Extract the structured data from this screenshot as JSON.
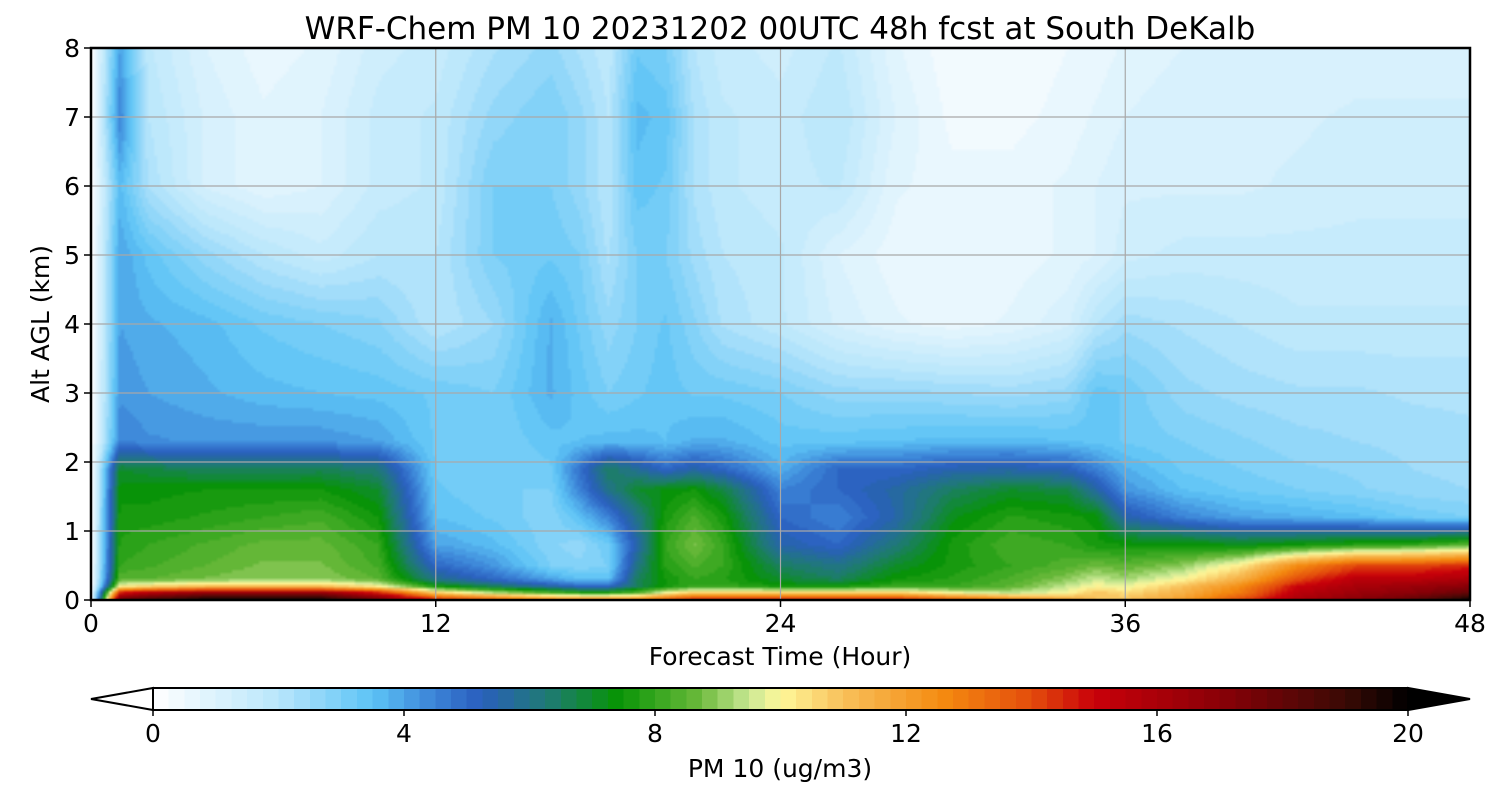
{
  "chart_data": {
    "type": "heatmap",
    "title": "WRF-Chem PM 10  20231202 00UTC 48h fcst at South DeKalb",
    "xlabel": "Forecast Time (Hour)",
    "ylabel": "Alt AGL (km)",
    "xlim": [
      0,
      48
    ],
    "ylim": [
      0,
      8
    ],
    "x_ticks": [
      0,
      12,
      24,
      36,
      48
    ],
    "y_ticks": [
      0,
      1,
      2,
      3,
      4,
      5,
      6,
      7,
      8
    ],
    "grid": true,
    "colorbar": {
      "label": "PM 10  (ug/m3)",
      "range": [
        0,
        20
      ],
      "ticks": [
        0,
        4,
        8,
        12,
        16,
        20
      ],
      "extend": "both",
      "orientation": "horizontal",
      "color_stops": [
        {
          "v": 0,
          "c": "#ffffff"
        },
        {
          "v": 2,
          "c": "#b9e6fb"
        },
        {
          "v": 3.5,
          "c": "#5cc3f6"
        },
        {
          "v": 4.5,
          "c": "#3b82d6"
        },
        {
          "v": 5.2,
          "c": "#2a5fbe"
        },
        {
          "v": 6.3,
          "c": "#1f7a73"
        },
        {
          "v": 7.4,
          "c": "#079406"
        },
        {
          "v": 8.7,
          "c": "#6ab93a"
        },
        {
          "v": 9.5,
          "c": "#c9e894"
        },
        {
          "v": 10,
          "c": "#fff89a"
        },
        {
          "v": 11,
          "c": "#f8c05a"
        },
        {
          "v": 12.6,
          "c": "#f48a10"
        },
        {
          "v": 14,
          "c": "#e34c0c"
        },
        {
          "v": 15,
          "c": "#c9000a"
        },
        {
          "v": 17,
          "c": "#8a0007"
        },
        {
          "v": 19,
          "c": "#3a0a05"
        },
        {
          "v": 20,
          "c": "#000000"
        }
      ]
    },
    "field": {
      "x": [
        0,
        1,
        2,
        4,
        6,
        8,
        10,
        12,
        14,
        16,
        17,
        18,
        19,
        20,
        21,
        22,
        24,
        26,
        28,
        30,
        32,
        34,
        35,
        36,
        38,
        40,
        42,
        44,
        46,
        48
      ],
      "y": [
        0,
        0.1,
        0.2,
        0.3,
        0.5,
        0.8,
        1.2,
        1.6,
        1.9,
        2.3,
        3,
        4,
        5,
        6,
        7,
        8
      ],
      "values": [
        [
          0,
          18,
          19,
          20,
          20,
          20,
          18,
          15,
          14,
          13,
          13,
          13,
          13,
          14,
          15,
          15,
          15,
          15,
          15,
          14,
          13,
          12,
          11,
          11,
          12,
          14,
          16,
          17,
          18,
          20
        ],
        [
          0,
          15,
          16,
          17,
          17,
          17,
          15,
          11,
          9.5,
          8.5,
          8,
          8,
          8.5,
          10,
          11,
          11,
          11,
          11,
          11,
          10,
          9.5,
          10,
          11,
          10.5,
          11.5,
          13,
          15.5,
          16.5,
          17,
          18
        ],
        [
          0,
          10,
          10.5,
          11,
          11,
          11,
          10,
          7.5,
          6.5,
          5.5,
          5,
          5,
          6.5,
          7.5,
          8,
          8,
          7.5,
          7.5,
          8,
          8,
          8.5,
          9.5,
          10,
          9.8,
          11,
          12.5,
          15,
          16,
          16.5,
          17
        ],
        [
          0,
          8.5,
          8.5,
          8.8,
          9,
          9,
          8.5,
          6,
          5,
          4,
          3.5,
          3.5,
          6.5,
          7.5,
          8,
          7.8,
          7,
          6.5,
          7.5,
          7.8,
          8.3,
          9,
          9.5,
          9.2,
          10,
          11.5,
          14,
          15.5,
          15.5,
          16
        ],
        [
          0,
          8,
          8.2,
          8.5,
          8.8,
          8.8,
          8.2,
          5,
          4.2,
          3,
          2.8,
          3,
          6,
          7.8,
          8.3,
          8,
          6.5,
          6,
          7,
          7.6,
          8,
          8.4,
          8.7,
          8.5,
          9,
          10.2,
          12.5,
          14,
          14,
          14.5
        ],
        [
          0,
          7.8,
          8,
          8.3,
          8.6,
          8.6,
          8,
          4,
          3.6,
          2.8,
          2.6,
          3.2,
          5.5,
          8,
          8.8,
          8,
          5.5,
          5,
          6.2,
          7.6,
          8.2,
          8,
          7.6,
          7.5,
          7.5,
          7.2,
          7.5,
          7.8,
          8,
          8.5
        ],
        [
          0,
          7.6,
          7.6,
          7.8,
          8,
          8.2,
          7.5,
          3.5,
          3.2,
          2.8,
          3.5,
          4.5,
          6,
          7.6,
          8.3,
          7.6,
          5,
          4.5,
          5.5,
          7.2,
          7.8,
          7.6,
          7.4,
          5.5,
          4.5,
          4,
          3.8,
          3.6,
          3.2,
          3
        ],
        [
          0,
          7.4,
          7.4,
          7.5,
          7.5,
          7.5,
          7,
          3.3,
          3,
          3,
          4.5,
          6,
          7,
          7.3,
          7.5,
          6.8,
          4.5,
          5,
          5.6,
          6.5,
          7,
          6.8,
          5.6,
          4.2,
          3.5,
          3.2,
          3,
          2.8,
          2.6,
          2.5
        ],
        [
          0,
          7,
          6.8,
          6.5,
          6.5,
          6.6,
          6.2,
          3.2,
          3,
          3.2,
          4.8,
          6.5,
          5.8,
          5,
          5.5,
          5,
          3.8,
          5,
          5,
          5.4,
          5.5,
          5.2,
          4.5,
          3.8,
          3.2,
          3,
          2.8,
          2.7,
          2.5,
          2.4
        ],
        [
          0,
          4.5,
          4.3,
          4.2,
          4.2,
          4.2,
          4,
          3.2,
          3,
          3.4,
          3.5,
          3.6,
          3.6,
          3.5,
          3.8,
          3.8,
          3.4,
          3.4,
          3.5,
          3.6,
          3.6,
          3.5,
          3.4,
          3.2,
          3,
          2.8,
          2.6,
          2.5,
          2.4,
          2.3
        ],
        [
          0,
          4.2,
          4,
          3.8,
          3.6,
          3.5,
          3.4,
          3.2,
          3,
          3.8,
          3.4,
          3,
          3.2,
          3.4,
          3.2,
          3.2,
          3,
          2.6,
          2.6,
          2.5,
          2.4,
          2.6,
          3.4,
          3.2,
          2.6,
          2.4,
          2.3,
          2.3,
          2.2,
          2.2
        ],
        [
          0,
          4,
          3.8,
          3.6,
          3.2,
          3,
          2.8,
          2,
          2.5,
          3.8,
          3.2,
          2.6,
          3,
          3.3,
          2.8,
          2.2,
          1.8,
          1.2,
          0.8,
          0.6,
          0.8,
          1.2,
          2,
          2.4,
          2.2,
          2,
          1.8,
          1.8,
          1.8,
          1.8
        ],
        [
          0,
          4,
          3.4,
          2.6,
          2,
          1.6,
          2,
          2,
          3,
          3.2,
          3,
          2.2,
          3,
          3,
          2.4,
          2,
          1.8,
          1,
          0.6,
          0.5,
          0.6,
          0.8,
          1,
          1.4,
          1.6,
          1.6,
          1.6,
          1.6,
          1.6,
          1.6
        ],
        [
          0,
          3.6,
          2.2,
          1.2,
          0.8,
          1,
          1.6,
          1.8,
          3,
          3,
          2.6,
          2,
          3.4,
          3.2,
          2.2,
          1.8,
          1.6,
          1.8,
          0.8,
          0.6,
          0.6,
          0.8,
          1,
          1.2,
          1.2,
          1.2,
          1.3,
          1.4,
          1.4,
          1.4
        ],
        [
          0,
          4.5,
          2,
          1.2,
          0.8,
          1,
          1.6,
          1.8,
          2.6,
          3,
          2.6,
          2,
          3.6,
          3.4,
          2.2,
          1.8,
          1.6,
          2,
          1,
          0.4,
          0.4,
          0.6,
          0.8,
          1,
          1.2,
          1.2,
          1.2,
          1.3,
          1.3,
          1.3
        ],
        [
          0,
          4,
          1.8,
          1,
          0.6,
          0.8,
          1.4,
          1.6,
          2.2,
          2.6,
          2.2,
          1.8,
          3.2,
          3,
          2,
          1.6,
          1.4,
          1.8,
          0.8,
          0.3,
          0.3,
          0.5,
          0.6,
          0.8,
          1,
          1,
          1,
          1.1,
          1.1,
          1.1
        ]
      ]
    }
  }
}
